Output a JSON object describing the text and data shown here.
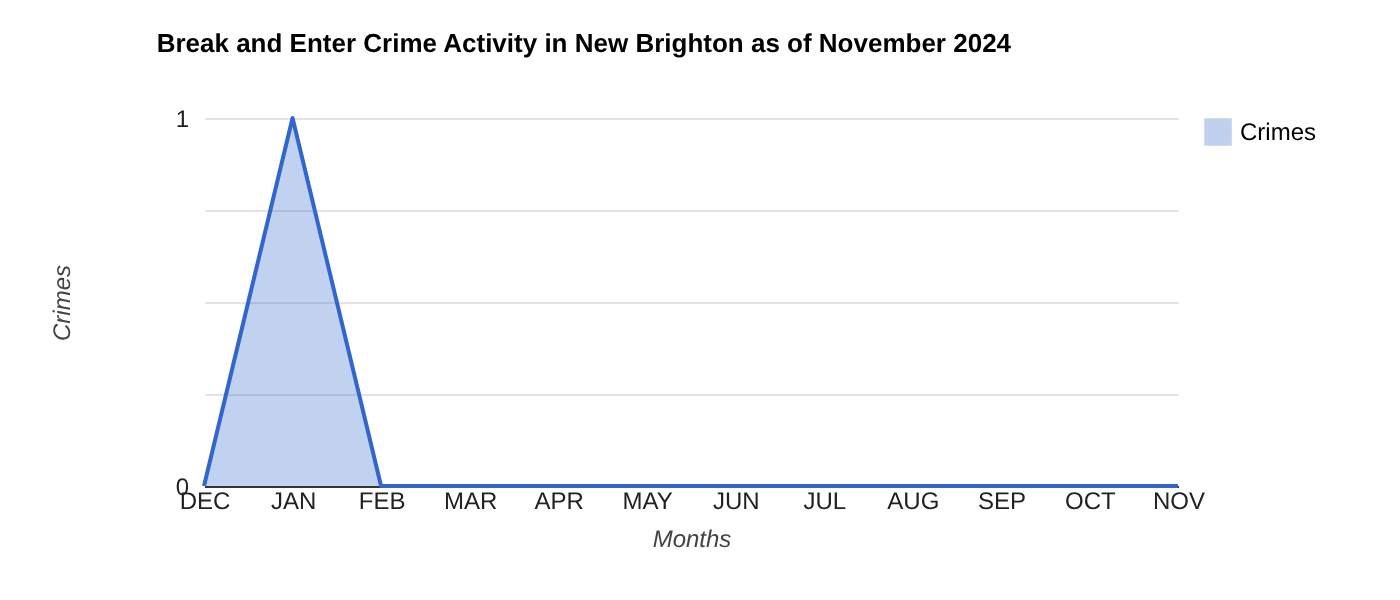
{
  "chart_data": {
    "type": "area",
    "title": "Break and Enter Crime Activity in New Brighton as of November 2024",
    "xlabel": "Months",
    "ylabel": "Crimes",
    "categories": [
      "DEC",
      "JAN",
      "FEB",
      "MAR",
      "APR",
      "MAY",
      "JUN",
      "JUL",
      "AUG",
      "SEP",
      "OCT",
      "NOV"
    ],
    "series": [
      {
        "name": "Crimes",
        "color": "#3366cc",
        "values": [
          0,
          1,
          0,
          0,
          0,
          0,
          0,
          0,
          0,
          0,
          0,
          0
        ]
      }
    ],
    "ylim": [
      0,
      1
    ],
    "yticks": [
      0,
      {
        "value": 0.25,
        "label": null
      },
      {
        "value": 0.5,
        "label": null
      },
      {
        "value": 0.75,
        "label": null
      },
      1
    ],
    "grid": "y",
    "legend": "top right"
  }
}
